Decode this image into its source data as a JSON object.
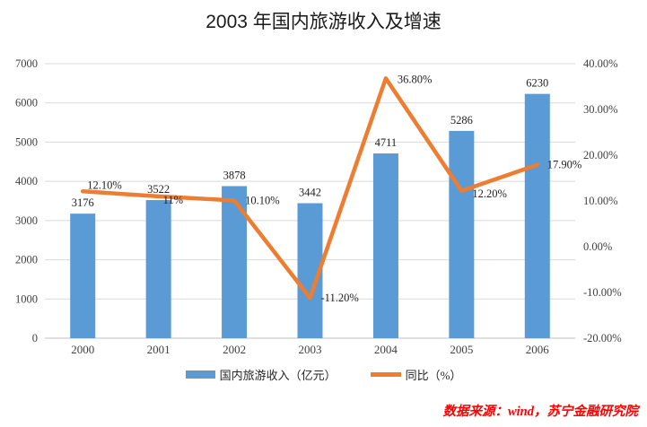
{
  "title": "2003 年国内旅游收入及增速",
  "source_note": "数据来源：wind，苏宁金融研究院",
  "legend": [
    {
      "label": "国内旅游收入（亿元）",
      "marker": "bar",
      "color": "#5B9BD5"
    },
    {
      "label": "同比（%）",
      "marker": "line",
      "color": "#ED7D31"
    }
  ],
  "colors": {
    "bar": "#5B9BD5",
    "line": "#ED7D31",
    "grid": "#D9D9D9",
    "axis_line": "#BFBFBF",
    "axis_text": "#404040",
    "label_text": "#1f1f1f",
    "source": "#FF0000"
  },
  "chart_data": {
    "type": "bar+line combo",
    "title": "2003 年国内旅游收入及增速",
    "categories": [
      "2000",
      "2001",
      "2002",
      "2003",
      "2004",
      "2005",
      "2006"
    ],
    "series": [
      {
        "name": "国内旅游收入（亿元）",
        "type": "bar",
        "axis": "left",
        "color": "#5B9BD5",
        "values": [
          3176,
          3522,
          3878,
          3442,
          4711,
          5286,
          6230
        ],
        "labels": [
          "3176",
          "3522",
          "3878",
          "3442",
          "4711",
          "5286",
          "6230"
        ]
      },
      {
        "name": "同比（%）",
        "type": "line",
        "axis": "right",
        "color": "#ED7D31",
        "values": [
          12.1,
          11,
          10.1,
          -11.2,
          36.8,
          12.2,
          17.9
        ],
        "labels": [
          "12.10%",
          "11%",
          "10.10%",
          "-11.20%",
          "36.80%",
          "12.20%",
          "17.90%"
        ],
        "label_offsets": [
          [
            5,
            -3
          ],
          [
            5,
            8
          ],
          [
            12,
            4
          ],
          [
            12,
            4
          ],
          [
            13,
            5
          ],
          [
            12,
            7
          ],
          [
            11,
            4
          ]
        ]
      }
    ],
    "left_axis": {
      "min": 0,
      "max": 7000,
      "step": 1000,
      "ticks": [
        "0",
        "1000",
        "2000",
        "3000",
        "4000",
        "5000",
        "6000",
        "7000"
      ]
    },
    "right_axis": {
      "min": -20,
      "max": 40,
      "step": 10,
      "ticks": [
        "40.00%",
        "30.00%",
        "20.00%",
        "10.00%",
        "0.00%",
        "-10.00%",
        "-20.00%"
      ]
    },
    "grid": true,
    "legend_position": "bottom"
  }
}
